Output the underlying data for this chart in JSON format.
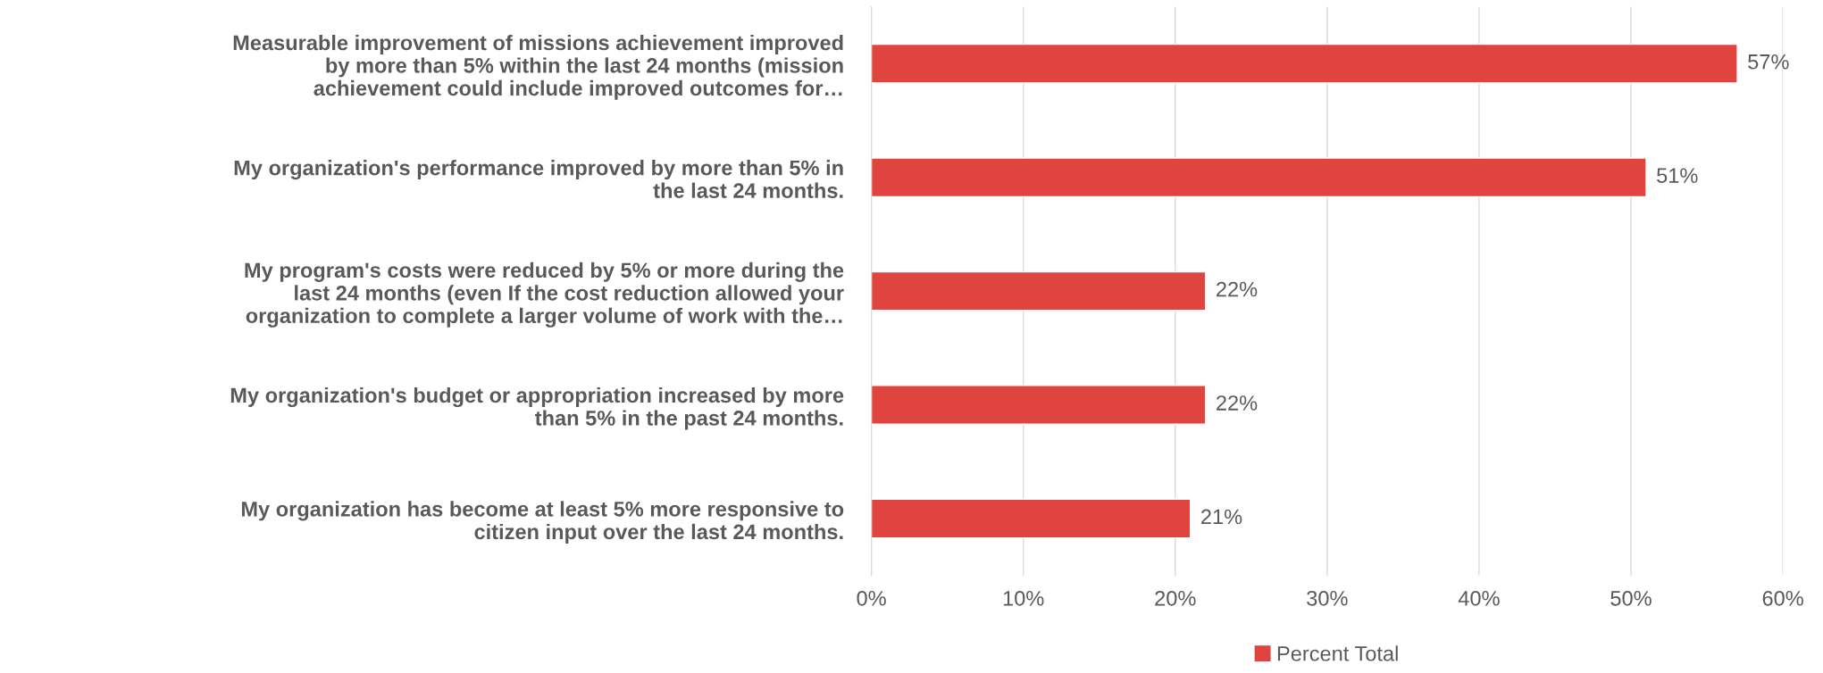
{
  "chart_data": {
    "type": "bar",
    "orientation": "horizontal",
    "categories": [
      "Measurable improvement of missions achievement improved\nby more than 5% within the last 24 months (mission\nachievement could include improved outcomes for…",
      "My organization's performance improved by more than 5% in\nthe last 24 months.",
      "My program's costs were reduced by 5% or more during the\nlast 24 months (even If the cost reduction allowed your\norganization to complete a larger volume of work with the…",
      "My organization's budget or appropriation increased by more\nthan 5% in the past 24 months.",
      "My organization has become at least 5% more responsive to\ncitizen input over the last 24 months."
    ],
    "series": [
      {
        "name": "Percent Total",
        "color": "#e0443e",
        "values": [
          57,
          51,
          22,
          22,
          21
        ],
        "value_labels": [
          "57%",
          "51%",
          "22%",
          "22%",
          "21%"
        ]
      }
    ],
    "xlim": [
      0,
      60
    ],
    "xticks": [
      {
        "value": 0,
        "label": "0%"
      },
      {
        "value": 10,
        "label": "10%"
      },
      {
        "value": 20,
        "label": "20%"
      },
      {
        "value": 30,
        "label": "30%"
      },
      {
        "value": 40,
        "label": "40%"
      },
      {
        "value": 50,
        "label": "50%"
      },
      {
        "value": 60,
        "label": "60%"
      }
    ],
    "grid": "x",
    "legend": "bottom"
  }
}
